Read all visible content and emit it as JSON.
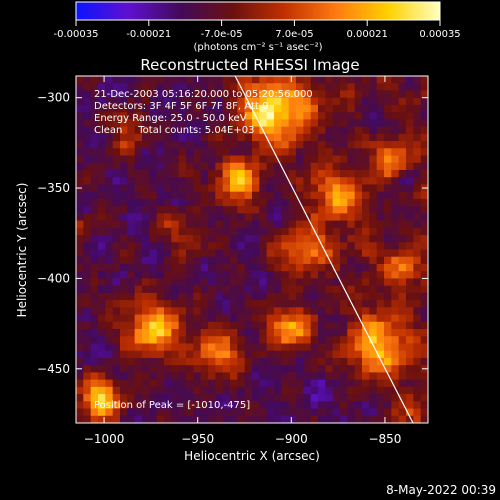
{
  "chart_data": {
    "type": "heatmap",
    "title": "Reconstructed RHESSI Image",
    "xlabel": "Heliocentric X (arcsec)",
    "ylabel": "Heliocentric Y (arcsec)",
    "xlim": [
      -1015,
      -827
    ],
    "ylim": [
      -480,
      -288
    ],
    "x_ticks": [
      -1000,
      -950,
      -900,
      -850
    ],
    "y_ticks": [
      -450,
      -400,
      -350,
      -300
    ],
    "colorbar": {
      "range": [
        -0.00035,
        0.00035
      ],
      "ticks": [
        "-0.00035",
        "-0.00021",
        "-7.0e-05",
        "7.0e-05",
        "0.00021",
        "0.00035"
      ],
      "units": "(photons cm⁻² s⁻¹ asec⁻²)",
      "colormap": [
        "#0a14ff",
        "#6010d0",
        "#420a5a",
        "#6a1010",
        "#c03000",
        "#ff7a10",
        "#ffd000",
        "#ffffc0"
      ]
    },
    "annotations": [
      "21-Dec-2003 05:16:20.000 to 05:20:56.000",
      "Detectors: 3F 4F 5F 6F 7F 8F, Att 0",
      "Energy Range: 25.0 - 50.0 keV",
      "Clean     Total counts: 5.04E+03"
    ],
    "peak_label": "Position of Peak = [-1010,-475]",
    "limb_line": {
      "x": [
        -930,
        -835
      ],
      "y": [
        -288,
        -480
      ]
    },
    "grid": false,
    "legend": "none"
  },
  "footer": {
    "timestamp": "8-May-2022 00:39"
  }
}
